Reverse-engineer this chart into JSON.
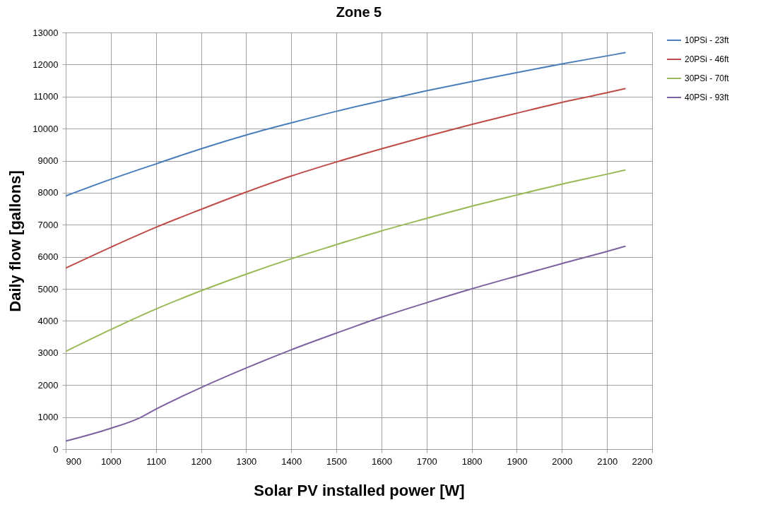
{
  "chart_data": {
    "type": "line",
    "title": "Zone 5",
    "xlabel": "Solar PV installed power [W]",
    "ylabel": "Daily flow [gallons]",
    "xlim": [
      900,
      2200
    ],
    "xticks": [
      900,
      1000,
      1100,
      1200,
      1300,
      1400,
      1500,
      1600,
      1700,
      1800,
      1900,
      2000,
      2100,
      2200
    ],
    "ylim": [
      0,
      13000
    ],
    "yticks": [
      0,
      1000,
      2000,
      3000,
      4000,
      5000,
      6000,
      7000,
      8000,
      9000,
      10000,
      11000,
      12000,
      13000
    ],
    "grid": true,
    "legend": "right",
    "marker": "none",
    "line_style": "solid",
    "series": [
      {
        "name": "10PSi - 23ft",
        "color": "#4a7ebb",
        "x": [
          900,
          1000,
          1100,
          1200,
          1300,
          1400,
          1500,
          1600,
          1700,
          1800,
          1900,
          2000,
          2100,
          2140
        ],
        "values": [
          7900,
          8420,
          8900,
          9370,
          9800,
          10180,
          10540,
          10870,
          11180,
          11470,
          11750,
          12020,
          12270,
          12370
        ]
      },
      {
        "name": "20PSi - 46ft",
        "color": "#be4b48",
        "x": [
          900,
          1000,
          1100,
          1200,
          1300,
          1400,
          1500,
          1600,
          1700,
          1800,
          1900,
          2000,
          2100,
          2140
        ],
        "values": [
          5650,
          6300,
          6920,
          7480,
          8020,
          8520,
          8960,
          9370,
          9760,
          10130,
          10480,
          10820,
          11120,
          11250
        ]
      },
      {
        "name": "30PSi - 70ft",
        "color": "#98b954",
        "x": [
          900,
          1000,
          1100,
          1200,
          1300,
          1400,
          1500,
          1600,
          1700,
          1800,
          1900,
          2000,
          2100,
          2140
        ],
        "values": [
          3050,
          3730,
          4370,
          4940,
          5460,
          5940,
          6380,
          6810,
          7200,
          7580,
          7930,
          8270,
          8580,
          8710
        ]
      },
      {
        "name": "40PSi - 93ft",
        "color": "#7d60a0",
        "x": [
          900,
          1000,
          1060,
          1100,
          1200,
          1300,
          1400,
          1500,
          1600,
          1700,
          1800,
          1900,
          2000,
          2100,
          2140
        ],
        "values": [
          250,
          650,
          950,
          1250,
          1920,
          2530,
          3100,
          3620,
          4120,
          4570,
          5000,
          5400,
          5790,
          6170,
          6330
        ]
      }
    ]
  }
}
